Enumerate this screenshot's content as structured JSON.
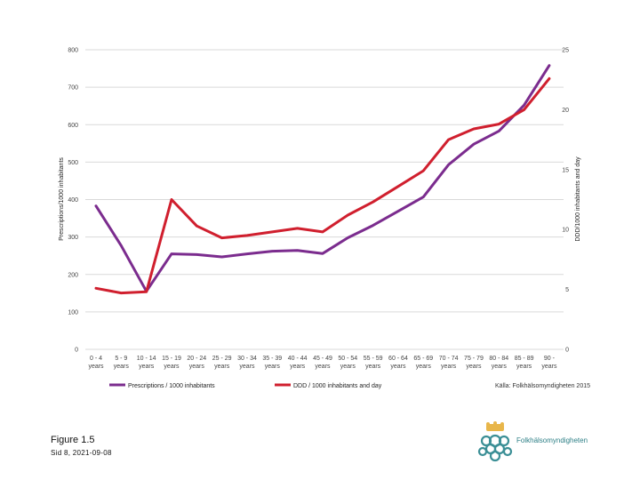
{
  "chart_data": {
    "type": "line",
    "categories": [
      [
        "0 - 4",
        "years"
      ],
      [
        "5 - 9",
        "years"
      ],
      [
        "10 - 14",
        "years"
      ],
      [
        "15 - 19",
        "years"
      ],
      [
        "20 - 24",
        "years"
      ],
      [
        "25 - 29",
        "years"
      ],
      [
        "30 - 34",
        "years"
      ],
      [
        "35 - 39",
        "years"
      ],
      [
        "40 - 44",
        "years"
      ],
      [
        "45 - 49",
        "years"
      ],
      [
        "50 - 54",
        "years"
      ],
      [
        "55 - 59",
        "years"
      ],
      [
        "60 - 64",
        "years"
      ],
      [
        "65 - 69",
        "years"
      ],
      [
        "70 - 74",
        "years"
      ],
      [
        "75 - 79",
        "years"
      ],
      [
        "80 - 84",
        "years"
      ],
      [
        "85 - 89",
        "years"
      ],
      [
        "90 -",
        "years"
      ]
    ],
    "y_left": {
      "label": "Prescriptions/1000 inhabitants",
      "ticks": [
        0,
        100,
        200,
        300,
        400,
        500,
        600,
        700,
        800
      ],
      "ylim": [
        0,
        800
      ]
    },
    "y_right": {
      "label": "DDD/1000 inhabitants and day",
      "ticks": [
        0,
        5,
        10,
        15,
        20,
        25
      ],
      "ylim": [
        0,
        25
      ]
    },
    "series": [
      {
        "name": "Prescriptions / 1000 inhabitants",
        "axis": "left",
        "color": "#7b2c8e",
        "values": [
          383,
          277,
          155,
          255,
          253,
          247,
          255,
          262,
          264,
          256,
          298,
          331,
          369,
          407,
          493,
          548,
          583,
          652,
          758
        ]
      },
      {
        "name": "DDD / 1000 inhabitants and day",
        "axis": "right",
        "color": "#d01f2e",
        "values": [
          5.1,
          4.7,
          4.8,
          12.5,
          10.3,
          9.3,
          9.5,
          9.8,
          10.1,
          9.8,
          11.2,
          12.3,
          13.6,
          14.9,
          17.5,
          18.4,
          18.8,
          20.0,
          22.6
        ]
      }
    ],
    "grid": true,
    "legend": "bottom",
    "source": "Källa: Folkhälsomyndigheten 2015"
  },
  "caption": {
    "figure": "Figure 1.5",
    "slide_date": "Sid 8, 2021-09-08"
  },
  "logo": {
    "text": "Folkhälsomyndigheten",
    "color": "#2d7f86",
    "accent": "#e8b64a"
  }
}
